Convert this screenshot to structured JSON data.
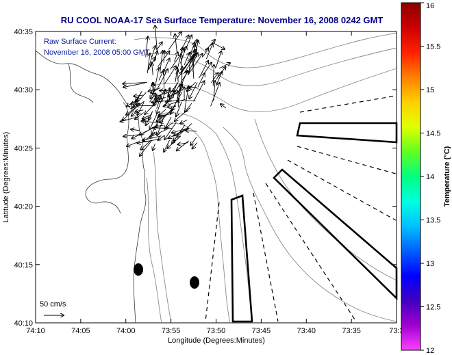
{
  "title": "RU COOL  NOAA-17  Sea Surface Temperature:  November 16, 2008 0242 GMT",
  "overlay": {
    "line1": "Raw Surface Current:",
    "line2": "November 16, 2008 05:00 GMT"
  },
  "scale_label": "50 cm/s",
  "x_axis": {
    "label": "Longitude (Degrees:Minutes)",
    "ticks": [
      "74:10",
      "74:05",
      "74:00",
      "73:55",
      "73:50",
      "73:45",
      "73:40",
      "73:35",
      "73:3"
    ]
  },
  "y_axis": {
    "label": "Latitude (Degrees:Minutes)",
    "ticks": [
      "40:35",
      "40:30",
      "40:25",
      "40:20",
      "40:15",
      "40:10"
    ]
  },
  "colorbar": {
    "label": "Temperature (°C)",
    "ticks": [
      "16",
      "15.5",
      "15",
      "14.5",
      "14",
      "13.5",
      "13",
      "12.5",
      "12"
    ],
    "colors": [
      "#8b0000",
      "#cc0000",
      "#ff2000",
      "#ff8000",
      "#ffd000",
      "#e0ff00",
      "#60ff20",
      "#00ff80",
      "#00ffe0",
      "#00c0ff",
      "#0060ff",
      "#0000ff",
      "#4000c0",
      "#a000d0",
      "#ff40ff"
    ]
  }
}
